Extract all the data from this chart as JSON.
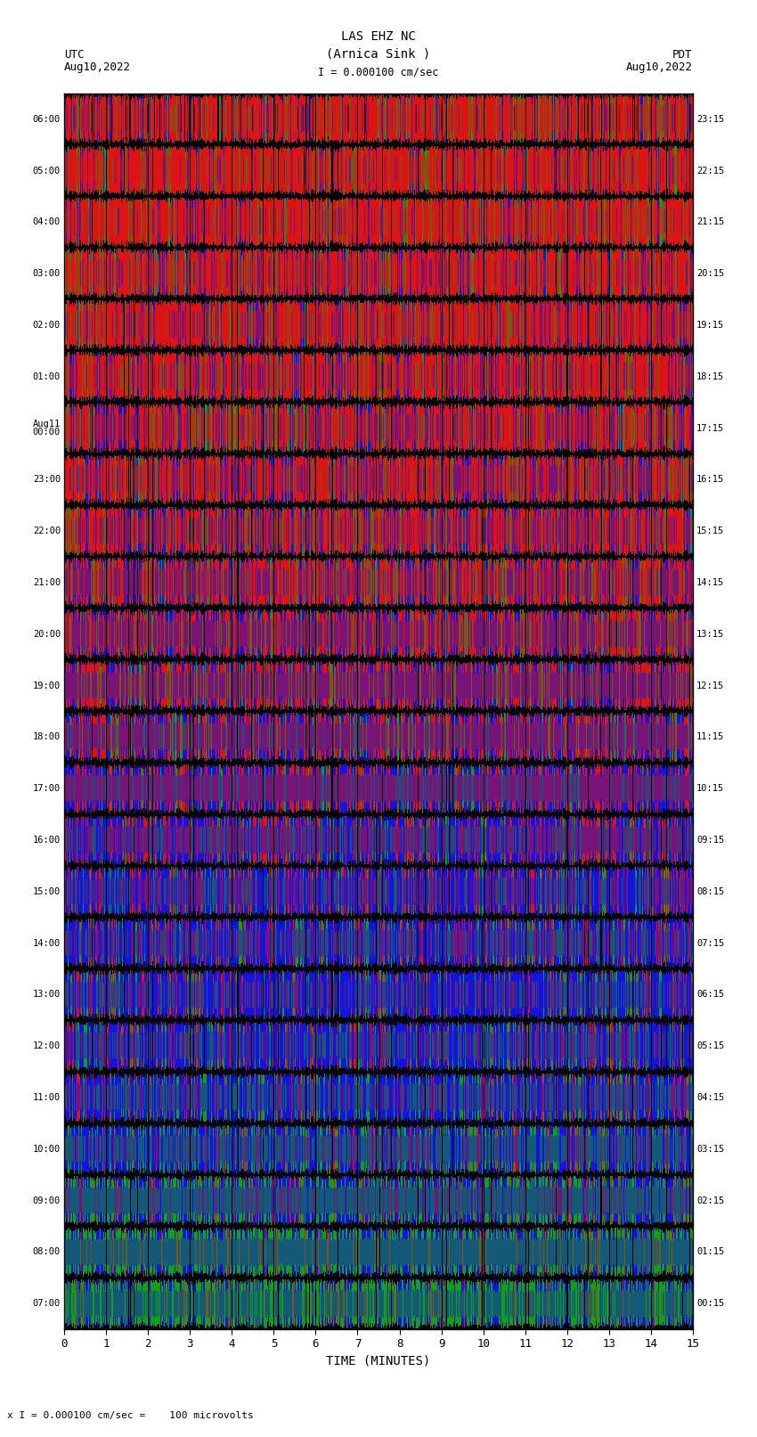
{
  "title_line1": "LAS EHZ NC",
  "title_line2": "(Arnica Sink )",
  "scale_label": "I = 0.000100 cm/sec",
  "left_label_top": "UTC",
  "left_label_bot": "Aug10,2022",
  "right_label_top": "PDT",
  "right_label_bot": "Aug10,2022",
  "xlabel": "TIME (MINUTES)",
  "bottom_label": "x I = 0.000100 cm/sec =    100 microvolts",
  "utc_times_left": [
    "07:00",
    "08:00",
    "09:00",
    "10:00",
    "11:00",
    "12:00",
    "13:00",
    "14:00",
    "15:00",
    "16:00",
    "17:00",
    "18:00",
    "19:00",
    "20:00",
    "21:00",
    "22:00",
    "23:00",
    "Aug11\n00:00",
    "01:00",
    "02:00",
    "03:00",
    "04:00",
    "05:00",
    "06:00"
  ],
  "pdt_times_right": [
    "00:15",
    "01:15",
    "02:15",
    "03:15",
    "04:15",
    "05:15",
    "06:15",
    "07:15",
    "08:15",
    "09:15",
    "10:15",
    "11:15",
    "12:15",
    "13:15",
    "14:15",
    "15:15",
    "16:15",
    "17:15",
    "18:15",
    "19:15",
    "20:15",
    "21:15",
    "22:15",
    "23:15"
  ],
  "n_rows": 24,
  "n_minutes": 15,
  "fig_bg": "#ffffff",
  "row_colors": [
    [
      0.85,
      0.12,
      0.1,
      0.03,
      0.0
    ],
    [
      0.82,
      0.1,
      0.08,
      0.0,
      0.0
    ],
    [
      0.8,
      0.1,
      0.1,
      0.0,
      0.0
    ],
    [
      0.78,
      0.1,
      0.12,
      0.0,
      0.0
    ],
    [
      0.75,
      0.1,
      0.15,
      0.0,
      0.0
    ],
    [
      0.72,
      0.1,
      0.18,
      0.0,
      0.0
    ],
    [
      0.7,
      0.1,
      0.2,
      0.0,
      0.0
    ],
    [
      0.68,
      0.1,
      0.22,
      0.0,
      0.0
    ],
    [
      0.65,
      0.1,
      0.25,
      0.0,
      0.0
    ],
    [
      0.62,
      0.1,
      0.28,
      0.0,
      0.0
    ],
    [
      0.55,
      0.1,
      0.35,
      0.0,
      0.0
    ],
    [
      0.5,
      0.1,
      0.4,
      0.0,
      0.0
    ],
    [
      0.45,
      0.12,
      0.43,
      0.0,
      0.0
    ],
    [
      0.38,
      0.12,
      0.5,
      0.0,
      0.0
    ],
    [
      0.3,
      0.12,
      0.58,
      0.0,
      0.0
    ],
    [
      0.22,
      0.12,
      0.66,
      0.0,
      0.0
    ],
    [
      0.18,
      0.15,
      0.67,
      0.0,
      0.0
    ],
    [
      0.15,
      0.15,
      0.7,
      0.0,
      0.0
    ],
    [
      0.15,
      0.18,
      0.67,
      0.0,
      0.0
    ],
    [
      0.12,
      0.2,
      0.68,
      0.0,
      0.0
    ],
    [
      0.1,
      0.3,
      0.6,
      0.0,
      0.0
    ],
    [
      0.08,
      0.4,
      0.52,
      0.0,
      0.0
    ],
    [
      0.05,
      0.5,
      0.45,
      0.0,
      0.0
    ],
    [
      0.03,
      0.6,
      0.37,
      0.0,
      0.0
    ]
  ]
}
